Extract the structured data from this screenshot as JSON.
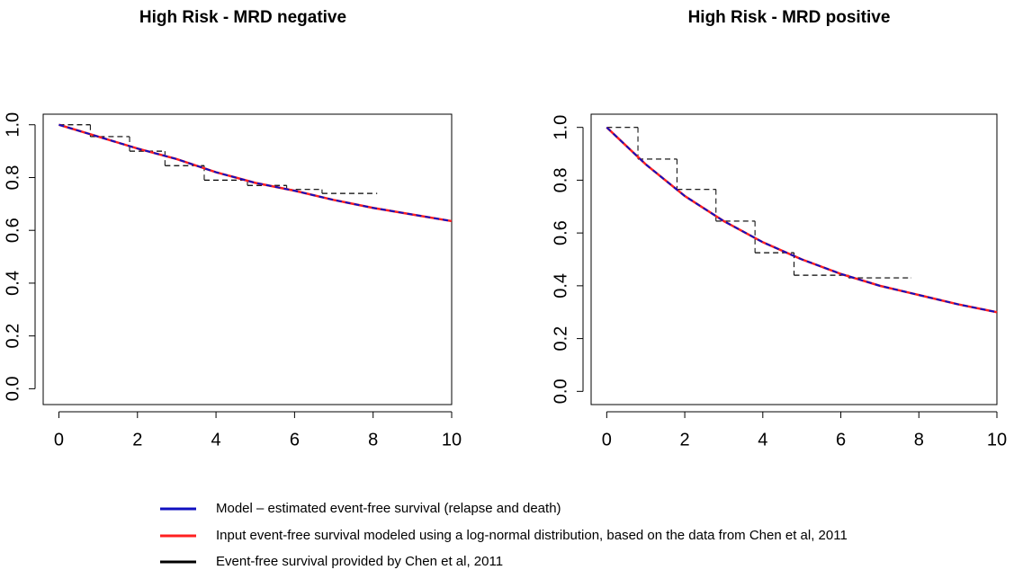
{
  "chart_data": [
    {
      "type": "line",
      "title": "High Risk - MRD negative",
      "xlim": [
        -0.4,
        10
      ],
      "ylim": [
        -0.06,
        1.04
      ],
      "xticks": [
        0,
        2,
        4,
        6,
        8,
        10
      ],
      "yticks": [
        {
          "value": 0,
          "label": "0.0"
        },
        0.2,
        0.4,
        0.6,
        0.8,
        {
          "value": 1,
          "label": "1.0"
        }
      ],
      "series": [
        {
          "name": "Model – estimated event-free survival (relapse and death)",
          "color": "#1010c0",
          "dashed": true,
          "x": [
            0,
            1,
            2,
            3,
            4,
            5,
            6,
            7,
            8,
            9,
            10
          ],
          "values": [
            1.0,
            0.955,
            0.91,
            0.87,
            0.82,
            0.78,
            0.75,
            0.715,
            0.685,
            0.66,
            0.635
          ]
        },
        {
          "name": "Input event-free survival modeled using a log-normal distribution, based on the data from Chen et al, 2011",
          "color": "#ff2020",
          "dashed": false,
          "x": [
            0,
            1,
            2,
            3,
            4,
            5,
            6,
            7,
            8,
            9,
            10
          ],
          "values": [
            1.0,
            0.955,
            0.91,
            0.87,
            0.82,
            0.78,
            0.75,
            0.715,
            0.685,
            0.66,
            0.635
          ]
        },
        {
          "name": "Event-free survival provided by Chen et al, 2011",
          "color": "#000000",
          "dashed": true,
          "step": true,
          "x": [
            0,
            0.8,
            1.8,
            2.7,
            3.7,
            4.8,
            5.8,
            6.7,
            8.1
          ],
          "values": [
            1.0,
            0.955,
            0.9,
            0.845,
            0.79,
            0.77,
            0.755,
            0.74,
            0.74
          ]
        }
      ]
    },
    {
      "type": "line",
      "title": "High Risk - MRD positive",
      "xlim": [
        -0.4,
        10
      ],
      "ylim": [
        -0.05,
        1.05
      ],
      "xticks": [
        0,
        2,
        4,
        6,
        8,
        10
      ],
      "yticks": [
        {
          "value": 0,
          "label": "0.0"
        },
        0.2,
        0.4,
        0.6,
        0.8,
        {
          "value": 1,
          "label": "1.0"
        }
      ],
      "series": [
        {
          "color": "#1010c0",
          "dashed": true,
          "x": [
            0,
            1,
            2,
            3,
            4,
            5,
            6,
            7,
            8,
            9,
            10
          ],
          "values": [
            1.0,
            0.86,
            0.74,
            0.645,
            0.565,
            0.5,
            0.445,
            0.4,
            0.365,
            0.33,
            0.3
          ]
        },
        {
          "color": "#ff2020",
          "dashed": false,
          "x": [
            0,
            1,
            2,
            3,
            4,
            5,
            6,
            7,
            8,
            9,
            10
          ],
          "values": [
            1.0,
            0.86,
            0.74,
            0.645,
            0.565,
            0.5,
            0.445,
            0.4,
            0.365,
            0.33,
            0.3
          ]
        },
        {
          "color": "#000000",
          "dashed": true,
          "step": true,
          "x": [
            0,
            0.8,
            1.8,
            2.8,
            3.8,
            4.8,
            6.2,
            7.8
          ],
          "values": [
            1.0,
            0.88,
            0.765,
            0.645,
            0.525,
            0.44,
            0.43,
            0.43
          ]
        }
      ]
    }
  ]
}
